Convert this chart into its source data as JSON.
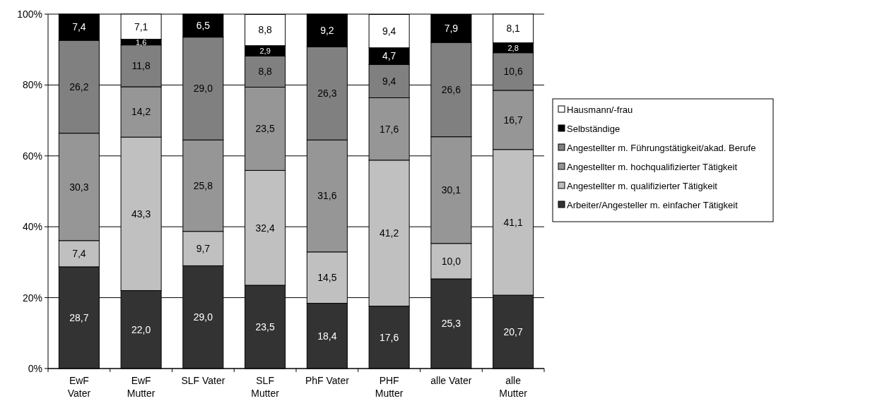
{
  "chart_data": {
    "type": "bar",
    "stacked": true,
    "categories": [
      "EwF\nVater",
      "EwF\nMutter",
      "SLF Vater",
      "SLF\nMutter",
      "PhF Vater",
      "PHF\nMutter",
      "alle Vater",
      "alle\nMutter"
    ],
    "ylim": [
      0,
      100
    ],
    "yticks": [
      {
        "value": 0,
        "label": "0%"
      },
      {
        "value": 20,
        "label": "20%"
      },
      {
        "value": 40,
        "label": "40%"
      },
      {
        "value": 60,
        "label": "60%"
      },
      {
        "value": 80,
        "label": "80%"
      },
      {
        "value": 100,
        "label": "100%"
      }
    ],
    "grid": "y",
    "legend": "right",
    "series": [
      {
        "name": "Arbeiter/Angesteller m. einfacher Tätigkeit",
        "color": "#333333",
        "values": [
          28.7,
          22.0,
          29.0,
          23.5,
          18.4,
          17.6,
          25.3,
          20.7
        ],
        "value_labels": [
          "28,7",
          "22,0",
          "29,0",
          "23,5",
          "18,4",
          "17,6",
          "25,3",
          "20,7"
        ]
      },
      {
        "name": "Angestellter m. qualifizierter Tätigkeit",
        "color": "#c0c0c0",
        "values": [
          7.4,
          43.3,
          9.7,
          32.4,
          14.5,
          41.2,
          10.0,
          41.1
        ],
        "value_labels": [
          "7,4",
          "43,3",
          "9,7",
          "32,4",
          "14,5",
          "41,2",
          "10,0",
          "41,1"
        ]
      },
      {
        "name": "Angestellter m. hochqualifizierter Tätigkeit",
        "color": "#969696",
        "values": [
          30.3,
          14.2,
          25.8,
          23.5,
          31.6,
          17.6,
          30.1,
          16.7
        ],
        "value_labels": [
          "30,3",
          "14,2",
          "25,8",
          "23,5",
          "31,6",
          "17,6",
          "30,1",
          "16,7"
        ]
      },
      {
        "name": "Angestellter m. Führungstätigkeit/akad. Berufe",
        "color": "#808080",
        "values": [
          26.2,
          11.8,
          29.0,
          8.8,
          26.3,
          9.4,
          26.6,
          10.6
        ],
        "value_labels": [
          "26,2",
          "11,8",
          "29,0",
          "8,8",
          "26,3",
          "9,4",
          "26,6",
          "10,6"
        ]
      },
      {
        "name": "Selbständige",
        "color": "#000000",
        "values": [
          7.4,
          1.6,
          6.5,
          2.9,
          9.2,
          4.7,
          7.9,
          2.8
        ],
        "value_labels": [
          "7,4",
          "1,6",
          "6,5",
          "2,9",
          "9,2",
          "4,7",
          "7,9",
          "2,8"
        ]
      },
      {
        "name": "Hausmann/-frau",
        "color": "#ffffff",
        "values": [
          0,
          7.1,
          0,
          8.8,
          0,
          9.4,
          0,
          8.1
        ],
        "value_labels": [
          null,
          "7,1",
          null,
          "8,8",
          null,
          "9,4",
          null,
          "8,1"
        ]
      }
    ]
  }
}
